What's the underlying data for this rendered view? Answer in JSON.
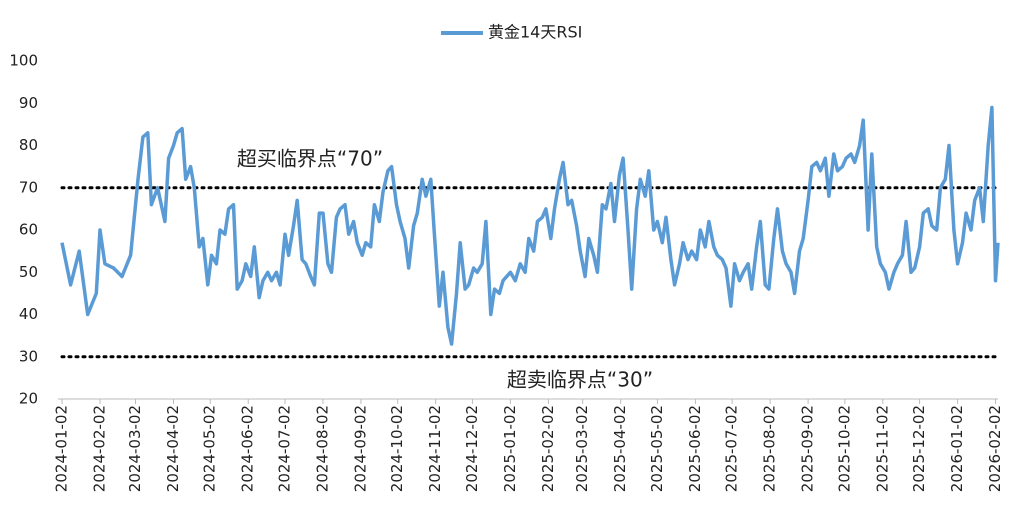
{
  "chart_data": {
    "type": "line",
    "x": [
      "2024-01-02",
      "2024-01-09",
      "2024-01-16",
      "2024-01-23",
      "2024-01-30",
      "2024-02-02",
      "2024-02-06",
      "2024-02-13",
      "2024-02-20",
      "2024-02-27",
      "2024-03-04",
      "2024-03-08",
      "2024-03-12",
      "2024-03-15",
      "2024-03-20",
      "2024-03-26",
      "2024-03-29",
      "2024-04-02",
      "2024-04-05",
      "2024-04-09",
      "2024-04-12",
      "2024-04-16",
      "2024-04-19",
      "2024-04-23",
      "2024-04-26",
      "2024-04-30",
      "2024-05-03",
      "2024-05-07",
      "2024-05-10",
      "2024-05-14",
      "2024-05-17",
      "2024-05-21",
      "2024-05-24",
      "2024-05-28",
      "2024-05-31",
      "2024-06-04",
      "2024-06-07",
      "2024-06-11",
      "2024-06-14",
      "2024-06-18",
      "2024-06-21",
      "2024-06-25",
      "2024-06-28",
      "2024-07-02",
      "2024-07-05",
      "2024-07-09",
      "2024-07-12",
      "2024-07-16",
      "2024-07-19",
      "2024-07-23",
      "2024-07-26",
      "2024-07-30",
      "2024-08-02",
      "2024-08-06",
      "2024-08-09",
      "2024-08-13",
      "2024-08-16",
      "2024-08-20",
      "2024-08-23",
      "2024-08-27",
      "2024-08-30",
      "2024-09-03",
      "2024-09-06",
      "2024-09-10",
      "2024-09-13",
      "2024-09-17",
      "2024-09-20",
      "2024-09-24",
      "2024-09-27",
      "2024-10-01",
      "2024-10-04",
      "2024-10-08",
      "2024-10-11",
      "2024-10-15",
      "2024-10-18",
      "2024-10-22",
      "2024-10-25",
      "2024-10-29",
      "2024-11-01",
      "2024-11-05",
      "2024-11-08",
      "2024-11-12",
      "2024-11-15",
      "2024-11-19",
      "2024-11-22",
      "2024-11-26",
      "2024-11-29",
      "2024-12-03",
      "2024-12-06",
      "2024-12-10",
      "2024-12-13",
      "2024-12-17",
      "2024-12-20",
      "2024-12-24",
      "2024-12-27",
      "2025-01-02",
      "2025-01-06",
      "2025-01-10",
      "2025-01-14",
      "2025-01-17",
      "2025-01-21",
      "2025-01-24",
      "2025-01-28",
      "2025-01-31",
      "2025-02-04",
      "2025-02-07",
      "2025-02-11",
      "2025-02-14",
      "2025-02-18",
      "2025-02-21",
      "2025-02-25",
      "2025-02-28",
      "2025-03-04",
      "2025-03-07",
      "2025-03-11",
      "2025-03-14",
      "2025-03-18",
      "2025-03-21",
      "2025-03-25",
      "2025-03-28",
      "2025-04-01",
      "2025-04-04",
      "2025-04-08",
      "2025-04-11",
      "2025-04-15",
      "2025-04-18",
      "2025-04-22",
      "2025-04-25",
      "2025-04-29",
      "2025-05-02",
      "2025-05-06",
      "2025-05-09",
      "2025-05-13",
      "2025-05-16",
      "2025-05-20",
      "2025-05-23",
      "2025-05-27",
      "2025-05-30",
      "2025-06-03",
      "2025-06-06",
      "2025-06-10",
      "2025-06-13",
      "2025-06-17",
      "2025-06-20",
      "2025-06-24",
      "2025-06-27",
      "2025-07-01",
      "2025-07-04",
      "2025-07-08",
      "2025-07-11",
      "2025-07-15",
      "2025-07-18",
      "2025-07-22",
      "2025-07-25",
      "2025-07-29",
      "2025-08-01",
      "2025-08-05",
      "2025-08-08",
      "2025-08-12",
      "2025-08-15",
      "2025-08-19",
      "2025-08-22",
      "2025-08-26",
      "2025-08-29",
      "2025-09-02",
      "2025-09-05",
      "2025-09-09",
      "2025-09-12",
      "2025-09-16",
      "2025-09-19",
      "2025-09-23",
      "2025-09-26",
      "2025-09-30",
      "2025-10-03",
      "2025-10-07",
      "2025-10-10",
      "2025-10-14",
      "2025-10-17",
      "2025-10-21",
      "2025-10-24",
      "2025-10-28",
      "2025-10-31",
      "2025-11-04",
      "2025-11-07",
      "2025-11-11",
      "2025-11-14",
      "2025-11-18",
      "2025-11-21",
      "2025-11-25",
      "2025-11-28",
      "2025-12-02",
      "2025-12-05",
      "2025-12-09",
      "2025-12-12",
      "2025-12-16",
      "2025-12-19",
      "2025-12-23",
      "2025-12-26",
      "2025-12-30",
      "2026-01-02",
      "2026-01-06",
      "2026-01-09",
      "2026-01-13",
      "2026-01-16",
      "2026-01-20",
      "2026-01-23",
      "2026-01-27",
      "2026-01-30",
      "2026-02-02",
      "2026-02-04"
    ],
    "series": [
      {
        "name": "黄金14天RSI",
        "color": "#5b9bd5",
        "values": [
          57,
          47,
          55,
          40,
          45,
          60,
          52,
          51,
          49,
          54,
          72,
          82,
          83,
          66,
          70,
          62,
          77,
          80,
          83,
          84,
          72,
          75,
          70,
          56,
          58,
          47,
          54,
          52,
          60,
          59,
          65,
          66,
          46,
          48,
          52,
          49,
          56,
          44,
          48,
          50,
          48,
          50,
          47,
          59,
          54,
          61,
          67,
          53,
          52,
          49,
          47,
          64,
          64,
          52,
          50,
          63,
          65,
          66,
          59,
          62,
          57,
          54,
          57,
          56,
          66,
          62,
          69,
          74,
          75,
          66,
          62,
          58,
          51,
          61,
          64,
          72,
          68,
          72,
          59,
          42,
          50,
          37,
          33,
          45,
          57,
          46,
          47,
          51,
          50,
          52,
          62,
          40,
          46,
          45,
          48,
          50,
          48,
          52,
          50,
          58,
          55,
          62,
          63,
          65,
          58,
          65,
          72,
          76,
          66,
          67,
          61,
          55,
          49,
          58,
          54,
          50,
          66,
          65,
          71,
          62,
          73,
          77,
          60,
          46,
          65,
          72,
          68,
          74,
          60,
          62,
          57,
          63,
          53,
          47,
          52,
          57,
          53,
          55,
          53,
          60,
          56,
          62,
          56,
          54,
          53,
          51,
          42,
          52,
          48,
          50,
          52,
          46,
          56,
          62,
          47,
          46,
          58,
          65,
          55,
          52,
          50,
          45,
          55,
          58,
          67,
          75,
          76,
          74,
          77,
          68,
          78,
          74,
          75,
          77,
          78,
          76,
          80,
          86,
          60,
          78,
          56,
          52,
          50,
          46,
          50,
          52,
          54,
          62,
          50,
          51,
          56,
          64,
          65,
          61,
          60,
          70,
          72,
          80,
          60,
          52,
          57,
          64,
          60,
          67,
          70,
          62,
          80,
          89,
          48,
          57
        ]
      }
    ],
    "xlim": [
      "2024-01-02",
      "2026-02-04"
    ],
    "xticks": [
      "2024-01-02",
      "2024-02-02",
      "2024-03-02",
      "2024-04-02",
      "2024-05-02",
      "2024-06-02",
      "2024-07-02",
      "2024-08-02",
      "2024-09-02",
      "2024-10-02",
      "2024-11-02",
      "2024-12-02",
      "2025-01-02",
      "2025-02-02",
      "2025-03-02",
      "2025-04-02",
      "2025-05-02",
      "2025-06-02",
      "2025-07-02",
      "2025-08-02",
      "2025-09-02",
      "2025-10-02",
      "2025-11-02",
      "2025-12-02",
      "2026-01-02",
      "2026-02-02"
    ],
    "ylim": [
      20,
      100
    ],
    "yticks": [
      20,
      30,
      40,
      50,
      60,
      70,
      80,
      90,
      100
    ],
    "reference_lines": [
      {
        "value": 70,
        "label": "超买临界点“70”"
      },
      {
        "value": 30,
        "label": "超卖临界点“30”"
      }
    ],
    "legend": "top"
  }
}
